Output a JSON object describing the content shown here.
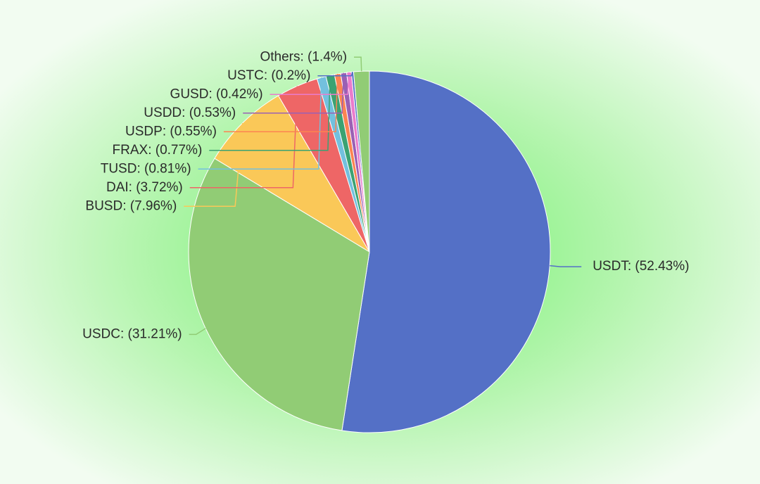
{
  "chart_data": {
    "type": "pie",
    "values": [
      52.43,
      31.21,
      7.96,
      3.72,
      0.81,
      0.77,
      0.55,
      0.53,
      0.42,
      0.2,
      1.4
    ],
    "value_labels": [
      "USDT: (52.43%)",
      "USDC: (31.21%)",
      "BUSD: (7.96%)",
      "DAI: (3.72%)",
      "TUSD: (0.81%)",
      "FRAX: (0.77%)",
      "USDP: (0.55%)",
      "USDD: (0.53%)",
      "GUSD: (0.42%)",
      "USTC: (0.2%)",
      "Others: (1.4%)"
    ],
    "colors": [
      "#5470c6",
      "#91cc75",
      "#fac858",
      "#ee6666",
      "#73c0de",
      "#3ba272",
      "#fc8452",
      "#9a60b4",
      "#ea7ccc",
      "#5470c6",
      "#91cc75"
    ]
  }
}
